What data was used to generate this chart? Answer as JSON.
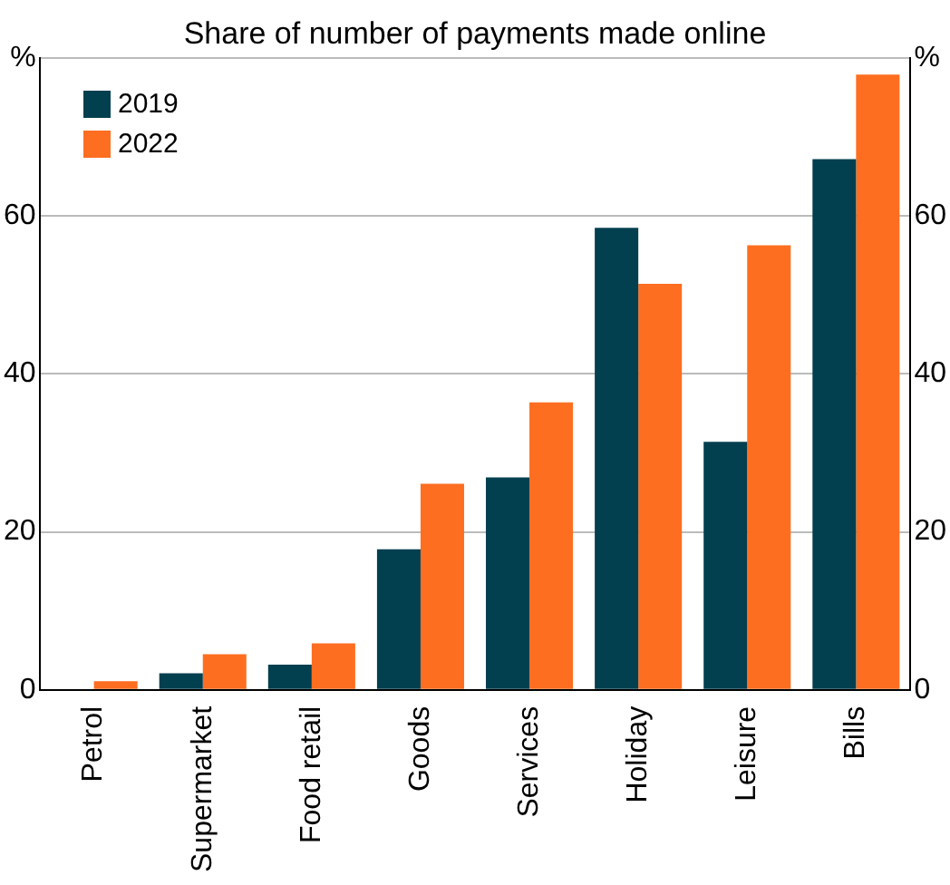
{
  "chart_data": {
    "type": "bar",
    "title": "Share of number of payments made online",
    "categories": [
      "Petrol",
      "Supermarket",
      "Food retail",
      "Goods",
      "Services",
      "Holiday",
      "Leisure",
      "Bills"
    ],
    "series": [
      {
        "name": "2019",
        "color": "#023f4f",
        "values": [
          0,
          2.1,
          3.2,
          17.8,
          26.9,
          58.5,
          31.4,
          67.2
        ]
      },
      {
        "name": "2022",
        "color": "#fd6e20",
        "values": [
          1.1,
          4.5,
          5.9,
          26.1,
          36.4,
          51.4,
          56.3,
          77.9
        ]
      }
    ],
    "ylim": [
      0,
      80
    ],
    "yticks": [
      0,
      20,
      40,
      60,
      {
        "value": 80,
        "label": "%"
      }
    ],
    "y2lim": [
      0,
      80
    ],
    "y2ticks": [
      0,
      20,
      40,
      60,
      {
        "value": 80,
        "label": "%"
      }
    ],
    "grid": "y",
    "legend": "top left"
  }
}
